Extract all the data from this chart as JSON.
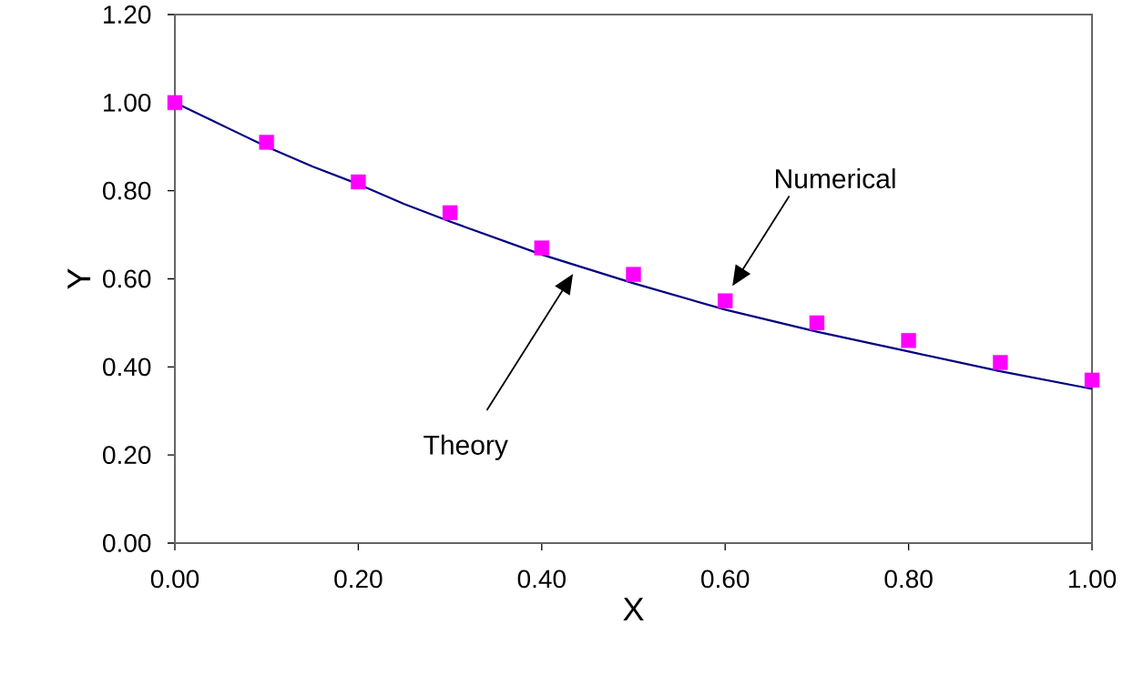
{
  "chart_data": {
    "type": "line",
    "xlabel": "X",
    "ylabel": "Y",
    "xlim": [
      0,
      1
    ],
    "ylim": [
      0,
      1.2
    ],
    "xticks": [
      {
        "value": 0,
        "label": "0.00"
      },
      {
        "value": 0.2,
        "label": "0.20"
      },
      {
        "value": 0.4,
        "label": "0.40"
      },
      {
        "value": 0.6,
        "label": "0.60"
      },
      {
        "value": 0.8,
        "label": "0.80"
      },
      {
        "value": 1,
        "label": "1.00"
      }
    ],
    "yticks": [
      {
        "value": 0,
        "label": "0.00"
      },
      {
        "value": 0.2,
        "label": "0.20"
      },
      {
        "value": 0.4,
        "label": "0.40"
      },
      {
        "value": 0.6,
        "label": "0.60"
      },
      {
        "value": 0.8,
        "label": "0.80"
      },
      {
        "value": 1,
        "label": "1.00"
      },
      {
        "value": 1.2,
        "label": "1.20"
      }
    ],
    "grid": false,
    "series": [
      {
        "color": "#000080",
        "marker": "none",
        "line_style": "solid",
        "x": [
          0,
          0.05,
          0.1,
          0.15,
          0.2,
          0.25,
          0.3,
          0.4,
          0.5,
          0.6,
          0.7,
          0.8,
          0.9,
          1.0
        ],
        "values": [
          1.0,
          0.95,
          0.9,
          0.855,
          0.815,
          0.77,
          0.73,
          0.655,
          0.59,
          0.53,
          0.48,
          0.435,
          0.39,
          0.35
        ]
      },
      {
        "type": "scatter",
        "color": "#ff00ff",
        "marker": "square",
        "x": [
          0,
          0.1,
          0.2,
          0.3,
          0.4,
          0.5,
          0.6,
          0.7,
          0.8,
          0.9,
          1.0
        ],
        "values": [
          1.0,
          0.91,
          0.82,
          0.75,
          0.67,
          0.61,
          0.55,
          0.5,
          0.46,
          0.41,
          0.37
        ]
      }
    ],
    "annotations": [
      "Numerical",
      "Theory"
    ]
  }
}
